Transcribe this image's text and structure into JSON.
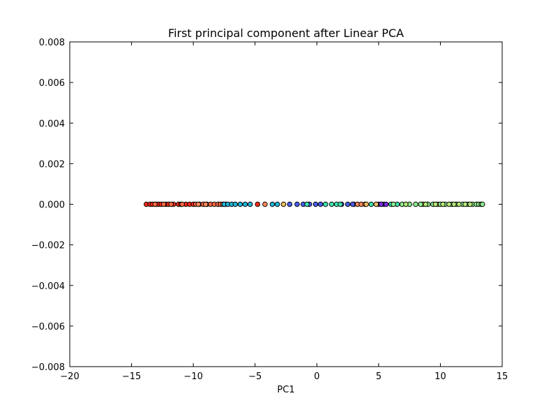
{
  "chart_data": {
    "type": "scatter",
    "title": "First principal component after Linear PCA",
    "xlabel": "PC1",
    "ylabel": "",
    "xlim": [
      -20,
      15
    ],
    "ylim": [
      -0.008,
      0.008
    ],
    "xticks": [
      -20,
      -15,
      -10,
      -5,
      0,
      5,
      10,
      15
    ],
    "xtick_labels": [
      "−20",
      "−15",
      "−10",
      "−5",
      "0",
      "5",
      "10",
      "15"
    ],
    "yticks": [
      0.008,
      0.006,
      0.004,
      0.002,
      0.0,
      -0.002,
      -0.004,
      -0.006,
      -0.008
    ],
    "ytick_labels": [
      "0.008",
      "0.006",
      "0.004",
      "0.002",
      "0.000",
      "−0.002",
      "−0.004",
      "−0.006",
      "−0.008"
    ],
    "grid": false,
    "marker_edge_color": "#000000",
    "series": [
      {
        "color": "#ff2a1a",
        "x": [
          -13.8,
          -13.5,
          -13.3,
          -13.0,
          -12.8,
          -12.6,
          -12.2,
          -12.0,
          -11.6,
          -11.2,
          -11.0,
          -10.6,
          -10.3,
          -10.0,
          -4.8
        ]
      },
      {
        "color": "#ff6a45",
        "x": [
          -13.1,
          -12.4,
          -11.8,
          -10.9,
          -9.8,
          -9.5,
          -9.2,
          -8.9,
          -8.6,
          -8.3,
          -8.0,
          -7.8
        ]
      },
      {
        "color": "#ff8c5a",
        "x": [
          -9.6,
          -9.0,
          -7.6,
          -7.4,
          -4.2,
          3.0,
          3.3,
          3.6,
          3.9
        ]
      },
      {
        "color": "#22b4d8",
        "x": [
          -7.5,
          -7.2,
          -6.9,
          -6.6,
          -6.2,
          -5.8,
          -5.4,
          -3.6,
          -3.2
        ]
      },
      {
        "color": "#4a5ef0",
        "x": [
          -2.2,
          -1.6,
          -1.1,
          -0.6,
          -0.1,
          0.3,
          2.0,
          2.5,
          2.9,
          5.4
        ]
      },
      {
        "color": "#7b2ee0",
        "x": [
          5.0,
          5.2,
          5.6
        ]
      },
      {
        "color": "#40e6b0",
        "x": [
          -0.8,
          0.7,
          1.2,
          1.6,
          1.9,
          4.4,
          6.0,
          6.5
        ]
      },
      {
        "color": "#f0c060",
        "x": [
          -2.7,
          4.0,
          4.8,
          8.6,
          9.8
        ]
      },
      {
        "color": "#90f090",
        "x": [
          6.2,
          6.9,
          7.5,
          8.0,
          8.4,
          9.0,
          9.4,
          10.0,
          10.4,
          10.9,
          11.3,
          11.8,
          12.2,
          12.6,
          12.9,
          13.1,
          13.3,
          13.4
        ]
      },
      {
        "color": "#b4e878",
        "x": [
          7.2,
          8.8,
          9.6,
          10.2,
          10.7,
          11.1,
          11.5,
          12.0,
          12.4
        ]
      }
    ]
  }
}
